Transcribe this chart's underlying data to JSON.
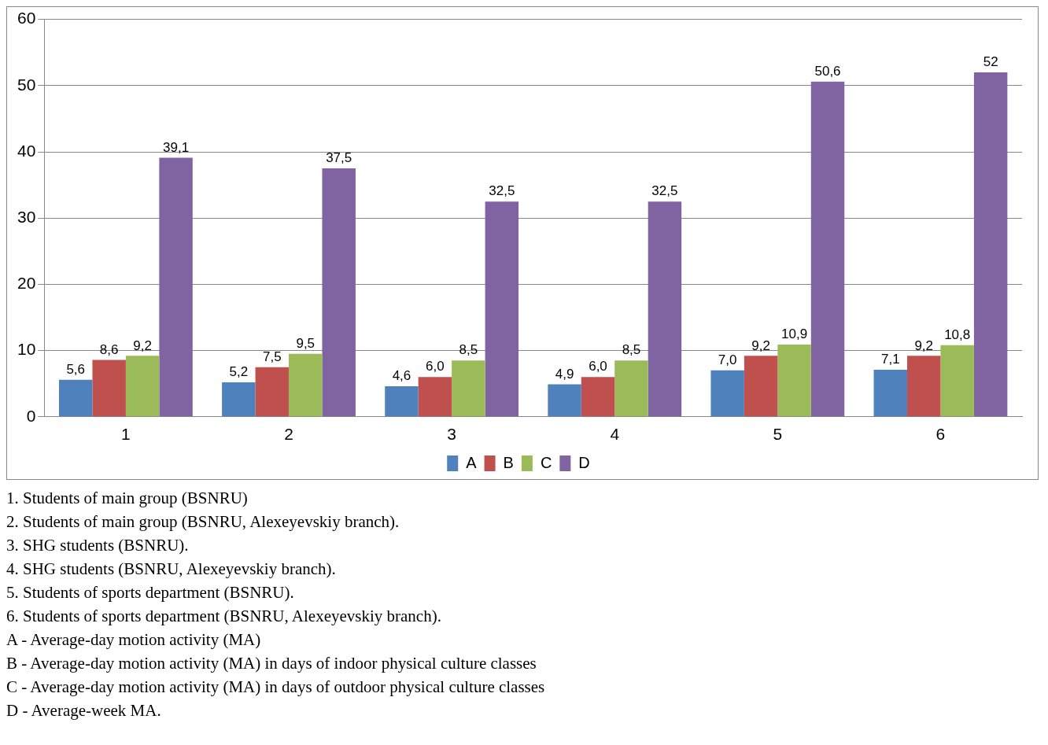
{
  "chart_data": {
    "type": "bar",
    "categories": [
      "1",
      "2",
      "3",
      "4",
      "5",
      "6"
    ],
    "series": [
      {
        "name": "A",
        "color": "#4f81bd",
        "values": [
          5.6,
          5.2,
          4.6,
          4.9,
          7.0,
          7.1
        ],
        "value_labels": [
          "5,6",
          "5,2",
          "4,6",
          "4,9",
          "7,0",
          "7,1"
        ]
      },
      {
        "name": "B",
        "color": "#c0504d",
        "values": [
          8.6,
          7.5,
          6.0,
          6.0,
          9.2,
          9.2
        ],
        "value_labels": [
          "8,6",
          "7,5",
          "6,0",
          "6,0",
          "9,2",
          "9,2"
        ]
      },
      {
        "name": "C",
        "color": "#9bbb59",
        "values": [
          9.2,
          9.5,
          8.5,
          8.5,
          10.9,
          10.8
        ],
        "value_labels": [
          "9,2",
          "9,5",
          "8,5",
          "8,5",
          "10,9",
          "10,8"
        ]
      },
      {
        "name": "D",
        "color": "#8064a2",
        "values": [
          39.1,
          37.5,
          32.5,
          32.5,
          50.6,
          52
        ],
        "value_labels": [
          "39,1",
          "37,5",
          "32,5",
          "32,5",
          "50,6",
          "52"
        ]
      }
    ],
    "ylim": [
      0,
      60
    ],
    "yticks": [
      0,
      10,
      20,
      30,
      40,
      50,
      60
    ],
    "grid": "y",
    "legend": "bottom",
    "annotations": [
      "1. Students of main group (BSNRU)",
      "2. Students of main group (BSNRU, Alexeyevskiy branch).",
      "3. SHG students (BSNRU).",
      "4. SHG students (BSNRU, Alexeyevskiy branch).",
      "5. Students of sports department (BSNRU).",
      "6. Students of sports department (BSNRU, Alexeyevskiy branch).",
      "A - Average-day motion activity (MA)",
      "B - Average-day motion activity (MA) in days of indoor physical culture classes",
      "C - Average-day motion activity (MA) in days of outdoor physical culture classes",
      "D - Average-week MA."
    ]
  }
}
